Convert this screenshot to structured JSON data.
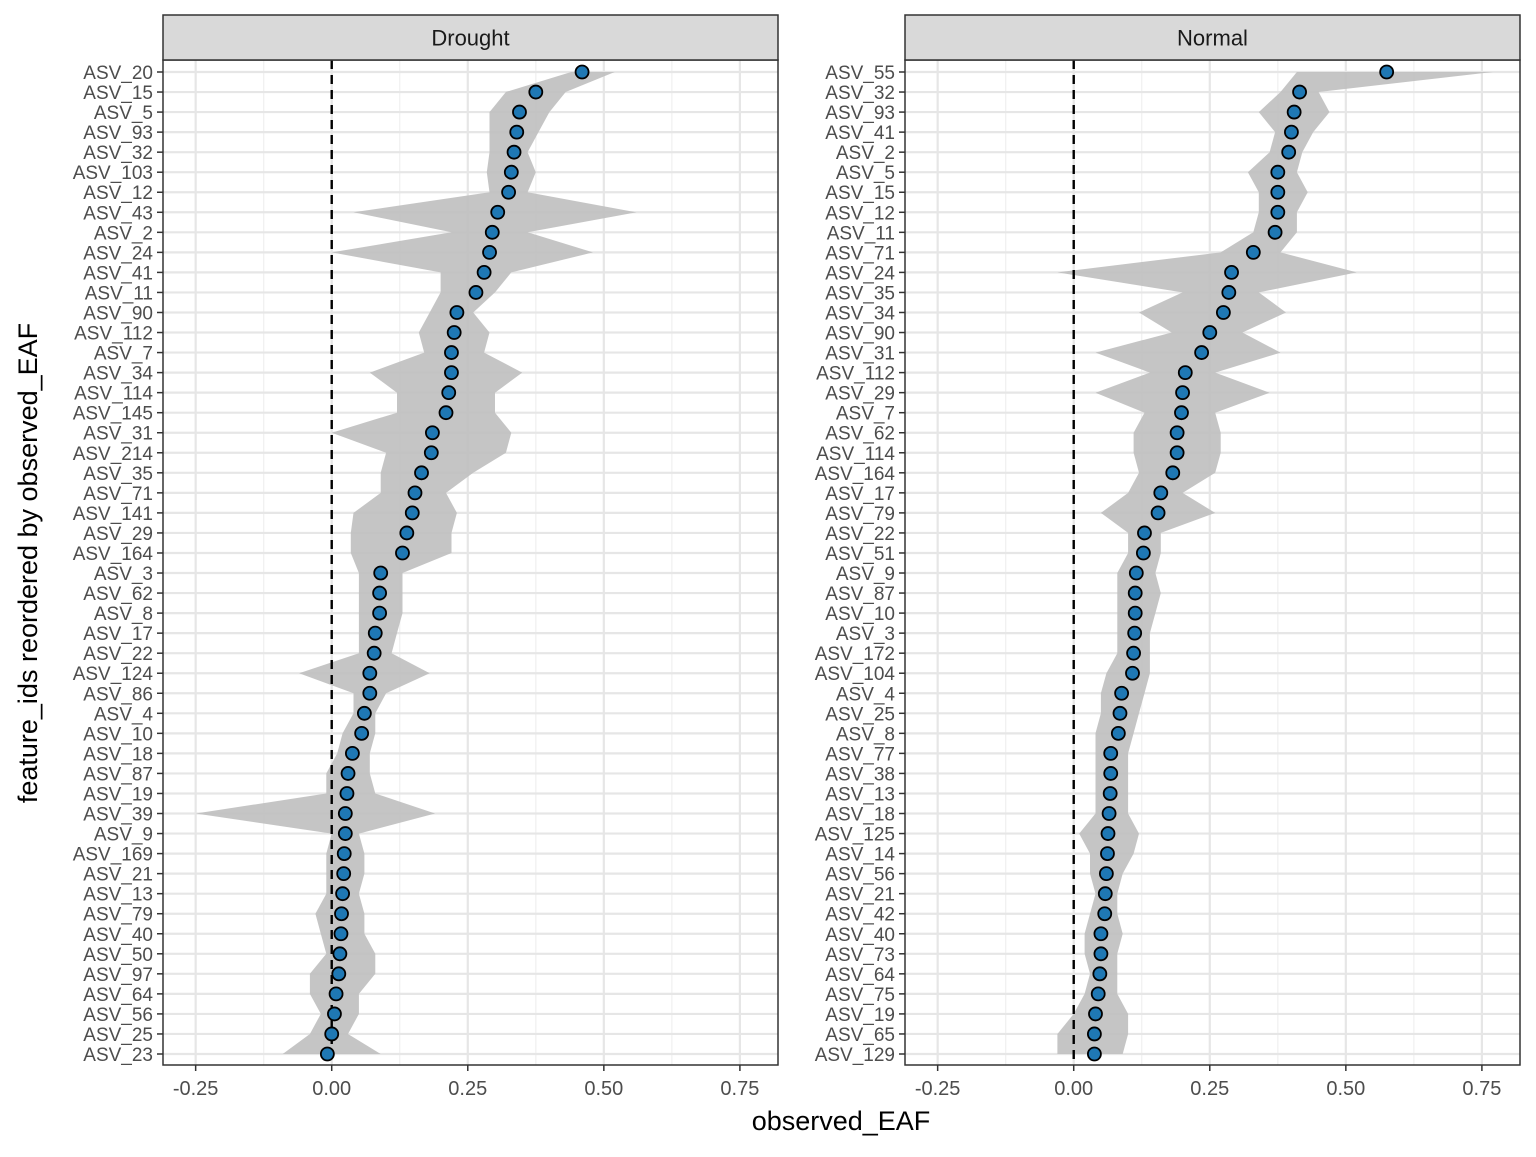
{
  "chart_data": {
    "type": "scatter",
    "xlabel": "observed_EAF",
    "ylabel": "feature_ids reordered by observed_EAF",
    "xlim": [
      -0.31,
      0.82
    ],
    "x_ticks": [
      -0.25,
      0.0,
      0.25,
      0.5,
      0.75
    ],
    "x_tick_labels": [
      "-0.25",
      "0.00",
      "0.25",
      "0.50",
      "0.75"
    ],
    "reference_line_x": 0.0,
    "grid": true,
    "colors": {
      "point_fill": "#1f78b4",
      "point_edge": "#000000",
      "ribbon": "#bfbfbf",
      "strip_bg": "#d9d9d9"
    },
    "panels": [
      {
        "strip": "Drought",
        "features": [
          "ASV_20",
          "ASV_15",
          "ASV_5",
          "ASV_93",
          "ASV_32",
          "ASV_103",
          "ASV_12",
          "ASV_43",
          "ASV_2",
          "ASV_24",
          "ASV_41",
          "ASV_11",
          "ASV_90",
          "ASV_112",
          "ASV_7",
          "ASV_34",
          "ASV_114",
          "ASV_145",
          "ASV_31",
          "ASV_214",
          "ASV_35",
          "ASV_71",
          "ASV_141",
          "ASV_29",
          "ASV_164",
          "ASV_3",
          "ASV_62",
          "ASV_8",
          "ASV_17",
          "ASV_22",
          "ASV_124",
          "ASV_86",
          "ASV_4",
          "ASV_10",
          "ASV_18",
          "ASV_87",
          "ASV_19",
          "ASV_39",
          "ASV_9",
          "ASV_169",
          "ASV_21",
          "ASV_13",
          "ASV_79",
          "ASV_40",
          "ASV_50",
          "ASV_97",
          "ASV_64",
          "ASV_56",
          "ASV_25",
          "ASV_23"
        ],
        "values": [
          0.46,
          0.375,
          0.345,
          0.34,
          0.335,
          0.33,
          0.325,
          0.305,
          0.295,
          0.29,
          0.28,
          0.265,
          0.23,
          0.225,
          0.22,
          0.22,
          0.215,
          0.21,
          0.185,
          0.183,
          0.165,
          0.153,
          0.148,
          0.138,
          0.13,
          0.09,
          0.088,
          0.088,
          0.08,
          0.078,
          0.07,
          0.07,
          0.06,
          0.055,
          0.038,
          0.03,
          0.028,
          0.025,
          0.025,
          0.023,
          0.022,
          0.02,
          0.018,
          0.017,
          0.015,
          0.013,
          0.008,
          0.005,
          0.0,
          -0.008
        ],
        "lower": [
          0.44,
          0.32,
          0.29,
          0.29,
          0.29,
          0.285,
          0.29,
          0.04,
          0.22,
          0.0,
          0.2,
          0.2,
          0.18,
          0.16,
          0.17,
          0.07,
          0.12,
          0.12,
          0.0,
          0.1,
          0.09,
          0.09,
          0.04,
          0.035,
          0.035,
          0.05,
          0.05,
          0.05,
          0.05,
          0.05,
          -0.06,
          0.04,
          0.04,
          0.02,
          0.01,
          -0.01,
          -0.01,
          -0.25,
          0.0,
          -0.01,
          -0.01,
          -0.01,
          -0.03,
          -0.02,
          -0.01,
          -0.04,
          -0.04,
          -0.02,
          -0.04,
          -0.09
        ],
        "upper": [
          0.52,
          0.43,
          0.4,
          0.38,
          0.36,
          0.375,
          0.36,
          0.56,
          0.36,
          0.48,
          0.33,
          0.3,
          0.26,
          0.29,
          0.28,
          0.35,
          0.3,
          0.3,
          0.33,
          0.32,
          0.26,
          0.21,
          0.23,
          0.22,
          0.22,
          0.13,
          0.13,
          0.13,
          0.12,
          0.11,
          0.18,
          0.1,
          0.08,
          0.08,
          0.07,
          0.07,
          0.08,
          0.19,
          0.05,
          0.06,
          0.06,
          0.05,
          0.06,
          0.06,
          0.08,
          0.08,
          0.05,
          0.05,
          0.03,
          0.09
        ]
      },
      {
        "strip": "Normal",
        "features": [
          "ASV_55",
          "ASV_32",
          "ASV_93",
          "ASV_41",
          "ASV_2",
          "ASV_5",
          "ASV_15",
          "ASV_12",
          "ASV_11",
          "ASV_71",
          "ASV_24",
          "ASV_35",
          "ASV_34",
          "ASV_90",
          "ASV_31",
          "ASV_112",
          "ASV_29",
          "ASV_7",
          "ASV_62",
          "ASV_114",
          "ASV_164",
          "ASV_17",
          "ASV_79",
          "ASV_22",
          "ASV_51",
          "ASV_9",
          "ASV_87",
          "ASV_10",
          "ASV_3",
          "ASV_172",
          "ASV_104",
          "ASV_4",
          "ASV_25",
          "ASV_8",
          "ASV_77",
          "ASV_38",
          "ASV_13",
          "ASV_18",
          "ASV_125",
          "ASV_14",
          "ASV_56",
          "ASV_21",
          "ASV_42",
          "ASV_40",
          "ASV_73",
          "ASV_64",
          "ASV_75",
          "ASV_19",
          "ASV_65",
          "ASV_129"
        ],
        "values": [
          0.575,
          0.415,
          0.405,
          0.4,
          0.395,
          0.375,
          0.375,
          0.375,
          0.37,
          0.33,
          0.29,
          0.285,
          0.275,
          0.25,
          0.235,
          0.205,
          0.2,
          0.198,
          0.19,
          0.19,
          0.182,
          0.16,
          0.155,
          0.13,
          0.128,
          0.115,
          0.113,
          0.113,
          0.112,
          0.11,
          0.108,
          0.088,
          0.085,
          0.082,
          0.068,
          0.068,
          0.067,
          0.065,
          0.063,
          0.062,
          0.06,
          0.058,
          0.057,
          0.05,
          0.05,
          0.048,
          0.045,
          0.04,
          0.038,
          0.038
        ],
        "lower": [
          0.41,
          0.38,
          0.34,
          0.37,
          0.36,
          0.32,
          0.34,
          0.34,
          0.33,
          0.27,
          -0.03,
          0.2,
          0.12,
          0.18,
          0.04,
          0.14,
          0.04,
          0.13,
          0.11,
          0.11,
          0.12,
          0.1,
          0.05,
          0.1,
          0.1,
          0.08,
          0.08,
          0.08,
          0.08,
          0.08,
          0.06,
          0.05,
          0.05,
          0.04,
          0.04,
          0.04,
          0.04,
          0.04,
          0.01,
          0.03,
          0.03,
          0.04,
          0.03,
          0.02,
          0.02,
          0.03,
          0.02,
          0.0,
          -0.03,
          -0.03
        ],
        "upper": [
          0.77,
          0.45,
          0.47,
          0.44,
          0.42,
          0.41,
          0.43,
          0.41,
          0.41,
          0.38,
          0.52,
          0.34,
          0.39,
          0.31,
          0.38,
          0.26,
          0.36,
          0.26,
          0.27,
          0.27,
          0.26,
          0.2,
          0.26,
          0.16,
          0.16,
          0.15,
          0.16,
          0.15,
          0.14,
          0.14,
          0.14,
          0.13,
          0.12,
          0.11,
          0.1,
          0.1,
          0.1,
          0.1,
          0.12,
          0.11,
          0.09,
          0.08,
          0.08,
          0.09,
          0.08,
          0.08,
          0.08,
          0.1,
          0.1,
          0.09
        ]
      }
    ]
  }
}
